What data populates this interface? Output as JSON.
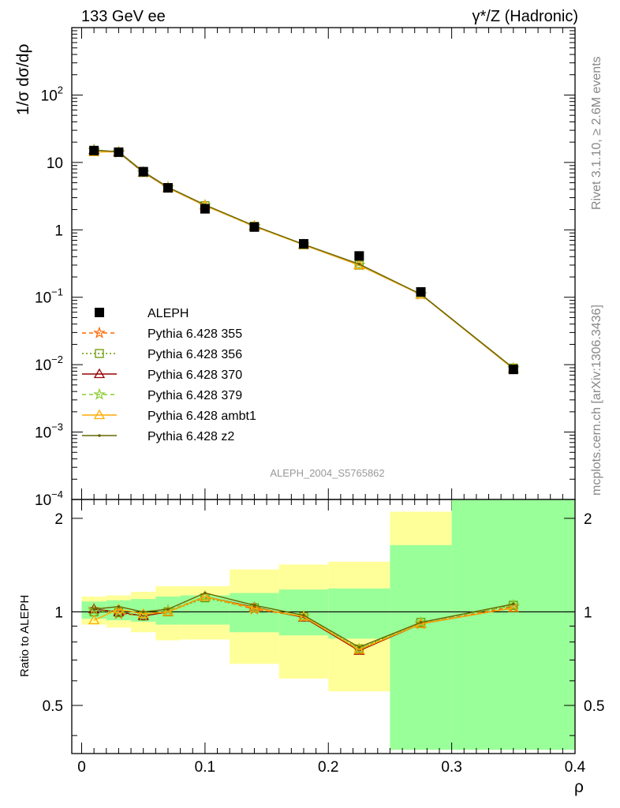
{
  "header": {
    "left_title": "133 GeV ee",
    "right_title": "γ*/Z (Hadronic)"
  },
  "side_labels": {
    "rivet": "Rivet 3.1.10, ≥ 2.6M events",
    "source": "mcplots.cern.ch [arXiv:1306.3436]"
  },
  "watermark": "ALEPH_2004_S5765862",
  "chart_data": [
    {
      "type": "line",
      "panel": "main",
      "ylabel": "1/σ dσ/dρ",
      "yscale": "log",
      "ylim": [
        0.0001,
        1000
      ],
      "xlim": [
        -0.008,
        0.4
      ],
      "ytick_labels": [
        {
          "value": 0.0001,
          "base": "10",
          "exp": "−4"
        },
        {
          "value": 0.001,
          "base": "10",
          "exp": "−3"
        },
        {
          "value": 0.01,
          "base": "10",
          "exp": "−2"
        },
        {
          "value": 0.1,
          "base": "10",
          "exp": "−1"
        },
        {
          "value": 1,
          "base": "1",
          "exp": ""
        },
        {
          "value": 10,
          "base": "10",
          "exp": ""
        },
        {
          "value": 100,
          "base": "10",
          "exp": "2"
        }
      ],
      "x": [
        0.01,
        0.03,
        0.05,
        0.07,
        0.1,
        0.14,
        0.18,
        0.225,
        0.275,
        0.35
      ],
      "data": {
        "name": "ALEPH",
        "color": "#000000",
        "values": [
          15.0,
          14.2,
          7.3,
          4.2,
          2.05,
          1.1,
          0.62,
          0.41,
          0.12,
          0.0085
        ]
      },
      "series": [
        {
          "name": "Pythia 6.428 355",
          "color": "#ff6600",
          "dash": "5,4",
          "marker": "star",
          "values": [
            15.3,
            14.0,
            7.1,
            4.25,
            2.3,
            1.12,
            0.6,
            0.3,
            0.11,
            0.0088
          ]
        },
        {
          "name": "Pythia 6.428 356",
          "color": "#669900",
          "dash": "2,3",
          "marker": "square",
          "values": [
            15.0,
            14.1,
            7.1,
            4.2,
            2.28,
            1.13,
            0.6,
            0.3,
            0.111,
            0.0089
          ]
        },
        {
          "name": "Pythia 6.428 370",
          "color": "#990000",
          "dash": "",
          "marker": "triangle",
          "values": [
            15.3,
            14.2,
            7.1,
            4.2,
            2.3,
            1.14,
            0.6,
            0.3,
            0.11,
            0.0087
          ]
        },
        {
          "name": "Pythia 6.428 379",
          "color": "#88cc33",
          "dash": "5,4",
          "marker": "star",
          "values": [
            15.2,
            14.2,
            7.1,
            4.25,
            2.3,
            1.13,
            0.6,
            0.3,
            0.111,
            0.0088
          ]
        },
        {
          "name": "Pythia 6.428 ambt1",
          "color": "#ffaa00",
          "dash": "",
          "marker": "triangle",
          "values": [
            14.2,
            14.4,
            7.2,
            4.2,
            2.3,
            1.13,
            0.6,
            0.3,
            0.11,
            0.0087
          ]
        },
        {
          "name": "Pythia 6.428 z2",
          "color": "#666600",
          "dash": "",
          "marker": "dot",
          "values": [
            15.3,
            14.4,
            7.3,
            4.3,
            2.35,
            1.15,
            0.61,
            0.31,
            0.111,
            0.0089
          ]
        }
      ],
      "legend_position": "lower-left"
    },
    {
      "type": "line",
      "panel": "ratio",
      "ylabel": "Ratio to ALEPH",
      "xlabel": "ρ",
      "yscale": "log",
      "ylim": [
        0.35,
        2.3
      ],
      "xlim": [
        -0.008,
        0.4
      ],
      "ytick_labels": [
        "0.5",
        "1",
        "2"
      ],
      "ytick_values": [
        0.5,
        1,
        2
      ],
      "xtick_labels": [
        "0",
        "0.1",
        "0.2",
        "0.3",
        "0.4"
      ],
      "xtick_values": [
        0,
        0.1,
        0.2,
        0.3,
        0.4
      ],
      "bins": [
        {
          "xlo": 0.0,
          "xhi": 0.02,
          "band_stat": [
            0.95,
            1.08
          ],
          "band_total": [
            0.91,
            1.12
          ]
        },
        {
          "xlo": 0.02,
          "xhi": 0.04,
          "band_stat": [
            0.94,
            1.09
          ],
          "band_total": [
            0.89,
            1.13
          ]
        },
        {
          "xlo": 0.04,
          "xhi": 0.06,
          "band_stat": [
            0.93,
            1.1
          ],
          "band_total": [
            0.86,
            1.16
          ]
        },
        {
          "xlo": 0.06,
          "xhi": 0.08,
          "band_stat": [
            0.91,
            1.12
          ],
          "band_total": [
            0.81,
            1.21
          ]
        },
        {
          "xlo": 0.08,
          "xhi": 0.12,
          "band_stat": [
            0.91,
            1.13
          ],
          "band_total": [
            0.815,
            1.21
          ]
        },
        {
          "xlo": 0.12,
          "xhi": 0.16,
          "band_stat": [
            0.86,
            1.15
          ],
          "band_total": [
            0.68,
            1.37
          ]
        },
        {
          "xlo": 0.16,
          "xhi": 0.2,
          "band_stat": [
            0.84,
            1.18
          ],
          "band_total": [
            0.61,
            1.42
          ]
        },
        {
          "xlo": 0.2,
          "xhi": 0.25,
          "band_stat": [
            0.82,
            1.19
          ],
          "band_total": [
            0.555,
            1.45
          ]
        },
        {
          "xlo": 0.25,
          "xhi": 0.3,
          "band_stat": [
            0.36,
            1.64
          ],
          "band_total": [
            0.36,
            2.1
          ]
        },
        {
          "xlo": 0.3,
          "xhi": 0.4,
          "band_stat": [
            0.36,
            2.3
          ],
          "band_total": [
            0.36,
            2.3
          ]
        }
      ],
      "band_colors": {
        "stat": "#99ff99",
        "total": "#ffff99"
      },
      "x": [
        0.01,
        0.03,
        0.05,
        0.07,
        0.1,
        0.14,
        0.18,
        0.225,
        0.275,
        0.35
      ],
      "series": [
        {
          "name": "Pythia 6.428 355",
          "values": [
            1.02,
            0.985,
            0.975,
            1.01,
            1.12,
            1.02,
            0.965,
            0.755,
            0.915,
            1.04
          ]
        },
        {
          "name": "Pythia 6.428 356",
          "values": [
            1.0,
            0.995,
            0.97,
            1.0,
            1.11,
            1.03,
            0.965,
            0.76,
            0.925,
            1.05
          ]
        },
        {
          "name": "Pythia 6.428 370",
          "values": [
            1.02,
            1.0,
            0.97,
            1.0,
            1.12,
            1.035,
            0.96,
            0.75,
            0.915,
            1.03
          ]
        },
        {
          "name": "Pythia 6.428 379",
          "values": [
            1.01,
            1.0,
            0.975,
            1.01,
            1.12,
            1.03,
            0.965,
            0.76,
            0.925,
            1.05
          ]
        },
        {
          "name": "Pythia 6.428 ambt1",
          "values": [
            0.94,
            1.02,
            0.985,
            1.0,
            1.12,
            1.03,
            0.965,
            0.755,
            0.915,
            1.03
          ]
        },
        {
          "name": "Pythia 6.428 z2",
          "values": [
            1.02,
            1.04,
            1.0,
            1.02,
            1.15,
            1.05,
            0.975,
            0.77,
            0.925,
            1.06
          ]
        }
      ]
    }
  ]
}
